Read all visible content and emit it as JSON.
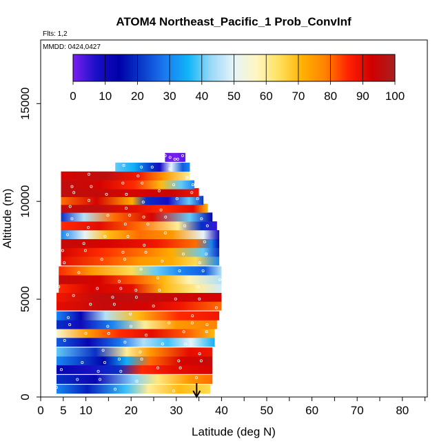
{
  "chart_data": {
    "type": "heatmap",
    "title": "ATOM4 Northeast_Pacific_1 Prob_ConvInf",
    "flights_label": "Flts: 1,2",
    "dates_label": "MMDD: 0424,0427",
    "xlabel": "Latitude (deg N)",
    "ylabel": "Altitude (m)",
    "xlim": [
      0,
      85
    ],
    "ylim": [
      0,
      18000
    ],
    "x_ticks": [
      "0",
      "5",
      "10",
      "20",
      "30",
      "40",
      "50",
      "60",
      "70",
      "80"
    ],
    "x_tick_values": [
      0,
      5,
      10,
      20,
      30,
      40,
      50,
      60,
      70,
      80
    ],
    "x_minor_ticks": [
      15,
      25,
      35,
      45,
      55,
      65,
      75,
      85
    ],
    "y_ticks": [
      "0",
      "5000",
      "10000",
      "15000"
    ],
    "y_tick_values": [
      0,
      5000,
      10000,
      15000
    ],
    "colorbar": {
      "ticks": [
        "0",
        "10",
        "20",
        "30",
        "40",
        "50",
        "60",
        "70",
        "80",
        "90",
        "100"
      ],
      "colors": [
        "#7a1ff2",
        "#1a10c8",
        "#0000a8",
        "#0a3ccc",
        "#1a7af0",
        "#10b4f8",
        "#9ad8f8",
        "#e6f4f8",
        "#fff6c0",
        "#ffe05a",
        "#ffb000",
        "#ff8000",
        "#ff2000",
        "#d00000",
        "#a82020"
      ]
    },
    "arrow_latitude": 34.5,
    "bands": [
      {
        "alt": 400,
        "lat": [
          3.5,
          37.5
        ],
        "stops": [
          [
            0,
            30
          ],
          [
            0.2,
            18
          ],
          [
            0.45,
            38
          ],
          [
            0.6,
            60
          ],
          [
            0.8,
            70
          ],
          [
            1,
            65
          ]
        ]
      },
      {
        "alt": 900,
        "lat": [
          3.5,
          38
        ],
        "stops": [
          [
            0,
            20
          ],
          [
            0.25,
            12
          ],
          [
            0.5,
            42
          ],
          [
            0.65,
            62
          ],
          [
            0.85,
            75
          ],
          [
            1,
            80
          ]
        ]
      },
      {
        "alt": 1400,
        "lat": [
          3.5,
          38
        ],
        "stops": [
          [
            0,
            15
          ],
          [
            0.2,
            8
          ],
          [
            0.4,
            20
          ],
          [
            0.55,
            85
          ],
          [
            0.75,
            90
          ],
          [
            1,
            92
          ]
        ]
      },
      {
        "alt": 1850,
        "lat": [
          3.5,
          38
        ],
        "stops": [
          [
            0,
            30
          ],
          [
            0.3,
            15
          ],
          [
            0.45,
            35
          ],
          [
            0.6,
            80
          ],
          [
            0.8,
            92
          ],
          [
            1,
            95
          ]
        ]
      },
      {
        "alt": 2300,
        "lat": [
          3.5,
          38
        ],
        "stops": [
          [
            0,
            40
          ],
          [
            0.25,
            20
          ],
          [
            0.45,
            60
          ],
          [
            0.6,
            75
          ],
          [
            0.85,
            90
          ],
          [
            1,
            88
          ]
        ]
      },
      {
        "alt": 2800,
        "lat": [
          3.5,
          38.5
        ],
        "stops": [
          [
            0,
            25
          ],
          [
            0.2,
            12
          ],
          [
            0.4,
            28
          ],
          [
            0.55,
            45
          ],
          [
            0.7,
            38
          ],
          [
            0.85,
            50
          ],
          [
            1,
            35
          ]
        ]
      },
      {
        "alt": 3250,
        "lat": [
          3.5,
          38.5
        ],
        "stops": [
          [
            0,
            55
          ],
          [
            0.2,
            75
          ],
          [
            0.4,
            85
          ],
          [
            0.6,
            90
          ],
          [
            0.8,
            82
          ],
          [
            1,
            70
          ]
        ]
      },
      {
        "alt": 3700,
        "lat": [
          3.5,
          39
        ],
        "stops": [
          [
            0,
            20
          ],
          [
            0.15,
            10
          ],
          [
            0.35,
            30
          ],
          [
            0.55,
            60
          ],
          [
            0.75,
            75
          ],
          [
            1,
            78
          ]
        ]
      },
      {
        "alt": 4150,
        "lat": [
          3.5,
          39.5
        ],
        "stops": [
          [
            0,
            30
          ],
          [
            0.15,
            12
          ],
          [
            0.3,
            45
          ],
          [
            0.5,
            70
          ],
          [
            0.75,
            85
          ],
          [
            1,
            88
          ]
        ]
      },
      {
        "alt": 4650,
        "lat": [
          3.5,
          40
        ],
        "stops": [
          [
            0,
            90
          ],
          [
            0.3,
            95
          ],
          [
            0.55,
            92
          ],
          [
            0.75,
            88
          ],
          [
            1,
            80
          ]
        ]
      },
      {
        "alt": 5100,
        "lat": [
          3.5,
          40
        ],
        "stops": [
          [
            0,
            88
          ],
          [
            0.25,
            95
          ],
          [
            0.5,
            96
          ],
          [
            0.75,
            94
          ],
          [
            1,
            92
          ]
        ]
      },
      {
        "alt": 5550,
        "lat": [
          4,
          40
        ],
        "stops": [
          [
            0,
            85
          ],
          [
            0.2,
            92
          ],
          [
            0.45,
            90
          ],
          [
            0.65,
            70
          ],
          [
            0.85,
            60
          ],
          [
            1,
            48
          ]
        ]
      },
      {
        "alt": 6000,
        "lat": [
          4,
          40
        ],
        "stops": [
          [
            0,
            95
          ],
          [
            0.25,
            92
          ],
          [
            0.45,
            82
          ],
          [
            0.65,
            70
          ],
          [
            0.8,
            58
          ],
          [
            1,
            45
          ]
        ]
      },
      {
        "alt": 6450,
        "lat": [
          4,
          40
        ],
        "stops": [
          [
            0,
            85
          ],
          [
            0.2,
            75
          ],
          [
            0.45,
            65
          ],
          [
            0.6,
            40
          ],
          [
            0.75,
            30
          ],
          [
            0.9,
            25
          ],
          [
            1,
            45
          ]
        ]
      },
      {
        "alt": 6950,
        "lat": [
          4.5,
          39.5
        ],
        "stops": [
          [
            0,
            90
          ],
          [
            0.3,
            82
          ],
          [
            0.5,
            75
          ],
          [
            0.7,
            72
          ],
          [
            0.85,
            65
          ],
          [
            1,
            30
          ]
        ]
      },
      {
        "alt": 7400,
        "lat": [
          4.5,
          39.5
        ],
        "stops": [
          [
            0,
            92
          ],
          [
            0.25,
            85
          ],
          [
            0.5,
            80
          ],
          [
            0.7,
            72
          ],
          [
            0.9,
            40
          ],
          [
            1,
            20
          ]
        ]
      },
      {
        "alt": 7850,
        "lat": [
          4.5,
          39.5
        ],
        "stops": [
          [
            0,
            95
          ],
          [
            0.3,
            92
          ],
          [
            0.6,
            88
          ],
          [
            0.85,
            80
          ],
          [
            0.95,
            30
          ],
          [
            1,
            15
          ]
        ]
      },
      {
        "alt": 8300,
        "lat": [
          4.5,
          39.5
        ],
        "stops": [
          [
            0,
            30
          ],
          [
            0.15,
            50
          ],
          [
            0.3,
            70
          ],
          [
            0.5,
            80
          ],
          [
            0.7,
            75
          ],
          [
            0.9,
            50
          ],
          [
            1,
            10
          ]
        ]
      },
      {
        "alt": 8750,
        "lat": [
          4.5,
          39
        ],
        "stops": [
          [
            0,
            85
          ],
          [
            0.25,
            90
          ],
          [
            0.5,
            80
          ],
          [
            0.75,
            60
          ],
          [
            0.9,
            20
          ],
          [
            1,
            5
          ]
        ]
      },
      {
        "alt": 9200,
        "lat": [
          4.5,
          38
        ],
        "stops": [
          [
            0,
            20
          ],
          [
            0.15,
            45
          ],
          [
            0.35,
            80
          ],
          [
            0.6,
            92
          ],
          [
            0.85,
            40
          ],
          [
            1,
            15
          ]
        ]
      },
      {
        "alt": 9650,
        "lat": [
          4.5,
          37
        ],
        "stops": [
          [
            0,
            95
          ],
          [
            0.25,
            96
          ],
          [
            0.5,
            90
          ],
          [
            0.7,
            85
          ],
          [
            0.9,
            90
          ],
          [
            1,
            70
          ]
        ]
      },
      {
        "alt": 10050,
        "lat": [
          4.5,
          36
        ],
        "stops": [
          [
            0,
            80
          ],
          [
            0.25,
            92
          ],
          [
            0.5,
            72
          ],
          [
            0.6,
            20
          ],
          [
            0.75,
            8
          ],
          [
            0.9,
            40
          ],
          [
            1,
            20
          ]
        ]
      },
      {
        "alt": 10450,
        "lat": [
          4.5,
          35
        ],
        "stops": [
          [
            0,
            96
          ],
          [
            0.3,
            95
          ],
          [
            0.55,
            92
          ],
          [
            0.8,
            94
          ],
          [
            1,
            88
          ]
        ]
      },
      {
        "alt": 10850,
        "lat": [
          4.5,
          34
        ],
        "stops": [
          [
            0,
            96
          ],
          [
            0.3,
            92
          ],
          [
            0.55,
            85
          ],
          [
            0.75,
            70
          ],
          [
            0.9,
            40
          ],
          [
            1,
            30
          ]
        ]
      },
      {
        "alt": 11300,
        "lat": [
          4.5,
          33
        ],
        "stops": [
          [
            0,
            92
          ],
          [
            0.35,
            96
          ],
          [
            0.6,
            88
          ],
          [
            0.8,
            75
          ],
          [
            1,
            60
          ]
        ]
      },
      {
        "alt": 11750,
        "lat": [
          16.5,
          33
        ],
        "stops": [
          [
            0,
            40
          ],
          [
            0.25,
            35
          ],
          [
            0.5,
            20
          ],
          [
            0.6,
            8
          ],
          [
            0.75,
            50
          ],
          [
            0.9,
            25
          ],
          [
            1,
            30
          ]
        ]
      },
      {
        "alt": 12250,
        "lat": [
          27.5,
          32
        ],
        "stops": [
          [
            0,
            2
          ],
          [
            0.5,
            0
          ],
          [
            1,
            3
          ]
        ]
      }
    ]
  }
}
